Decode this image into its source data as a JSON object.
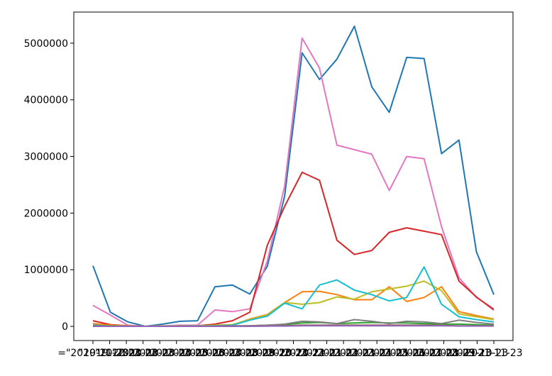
{
  "chart_data": {
    "type": "line",
    "title": "",
    "xlabel": "",
    "ylabel": "",
    "ylim": [
      -250000,
      5550000
    ],
    "yticks": [
      0,
      1000000,
      2000000,
      3000000,
      4000000,
      5000000
    ],
    "ytick_labels": [
      "0",
      "1000000",
      "2000000",
      "3000000",
      "4000000",
      "5000000"
    ],
    "x_tick_labels": [
      "=\"2019-11-23",
      "\"2019-12-23",
      "\"2020-01-23",
      "\"2020-02-23",
      "\"2020-03-23",
      "\"2020-04-23",
      "\"2020-05-23",
      "\"2020-06-23",
      "\"2020-07-23",
      "\"2020-08-23",
      "\"2020-09-23",
      "\"2020-10-23",
      "\"2020-11-23",
      "\"2020-12-23",
      "\"2021-01-23",
      "\"2021-02-23",
      "\"2021-03-23",
      "\"2021-04-23",
      "\"2021-05-23",
      "\"2021-06-23",
      "\"2021-07-23",
      "\"2021-08-23",
      "\"2021-09-23",
      "\"2021-10-23",
      "2021-11-23"
    ],
    "series": [
      {
        "name": "series-1",
        "color": "#1f77b4",
        "values": [
          1070000,
          250000,
          80000,
          0,
          40000,
          90000,
          100000,
          700000,
          730000,
          570000,
          1060000,
          2300000,
          4830000,
          4360000,
          4720000,
          5300000,
          4230000,
          3780000,
          4750000,
          4730000,
          3050000,
          3290000,
          1320000,
          560000
        ]
      },
      {
        "name": "series-2",
        "color": "#e377c2",
        "values": [
          370000,
          200000,
          20000,
          0,
          10000,
          20000,
          20000,
          290000,
          260000,
          310000,
          1150000,
          2480000,
          5090000,
          4560000,
          3200000,
          3120000,
          3040000,
          2400000,
          3000000,
          2960000,
          1760000,
          860000,
          510000,
          310000
        ]
      },
      {
        "name": "series-3",
        "color": "#d62728",
        "values": [
          100000,
          30000,
          10000,
          0,
          0,
          10000,
          10000,
          40000,
          100000,
          250000,
          1430000,
          2120000,
          2720000,
          2580000,
          1520000,
          1270000,
          1340000,
          1660000,
          1740000,
          1680000,
          1620000,
          800000,
          520000,
          290000
        ]
      },
      {
        "name": "series-4",
        "color": "#ff7f0e",
        "values": [
          50000,
          20000,
          5000,
          0,
          5000,
          10000,
          10000,
          20000,
          20000,
          130000,
          210000,
          420000,
          610000,
          620000,
          560000,
          470000,
          470000,
          700000,
          440000,
          510000,
          700000,
          260000,
          190000,
          130000
        ]
      },
      {
        "name": "series-5",
        "color": "#bcbd22",
        "values": [
          20000,
          10000,
          5000,
          0,
          5000,
          5000,
          5000,
          20000,
          30000,
          120000,
          200000,
          420000,
          390000,
          420000,
          520000,
          480000,
          610000,
          660000,
          710000,
          800000,
          630000,
          220000,
          170000,
          120000
        ]
      },
      {
        "name": "series-6",
        "color": "#17becf",
        "values": [
          20000,
          5000,
          0,
          0,
          0,
          5000,
          5000,
          10000,
          20000,
          110000,
          180000,
          410000,
          310000,
          730000,
          820000,
          640000,
          560000,
          450000,
          510000,
          1050000,
          390000,
          170000,
          120000,
          80000
        ]
      },
      {
        "name": "series-7",
        "color": "#2ca02c",
        "values": [
          10000,
          5000,
          0,
          0,
          0,
          0,
          0,
          5000,
          5000,
          10000,
          20000,
          30000,
          60000,
          70000,
          50000,
          60000,
          70000,
          60000,
          60000,
          50000,
          40000,
          40000,
          30000,
          20000
        ]
      },
      {
        "name": "series-8",
        "color": "#7f7f7f",
        "values": [
          5000,
          0,
          0,
          0,
          0,
          0,
          0,
          5000,
          10000,
          10000,
          20000,
          40000,
          90000,
          80000,
          50000,
          120000,
          90000,
          50000,
          90000,
          80000,
          50000,
          110000,
          70000,
          40000
        ]
      },
      {
        "name": "series-9",
        "color": "#8c564b",
        "values": [
          5000,
          0,
          0,
          0,
          0,
          0,
          0,
          0,
          5000,
          5000,
          5000,
          10000,
          20000,
          20000,
          20000,
          20000,
          20000,
          20000,
          20000,
          20000,
          15000,
          10000,
          10000,
          10000
        ]
      },
      {
        "name": "series-10",
        "color": "#9467bd",
        "values": [
          0,
          0,
          0,
          0,
          0,
          0,
          0,
          0,
          0,
          0,
          5000,
          5000,
          10000,
          10000,
          10000,
          10000,
          10000,
          10000,
          10000,
          10000,
          10000,
          5000,
          5000,
          5000
        ]
      }
    ]
  }
}
